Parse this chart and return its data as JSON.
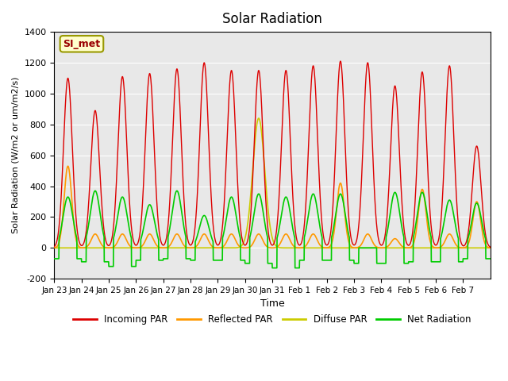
{
  "title": "Solar Radiation",
  "ylabel": "Solar Radiation (W/m2 or um/m2/s)",
  "xlabel": "Time",
  "ylim": [
    -200,
    1400
  ],
  "yticks": [
    -200,
    0,
    200,
    400,
    600,
    800,
    1000,
    1200,
    1400
  ],
  "x_labels": [
    "Jan 23",
    "Jan 24",
    "Jan 25",
    "Jan 26",
    "Jan 27",
    "Jan 28",
    "Jan 29",
    "Jan 30",
    "Jan 31",
    "Feb 1",
    "Feb 2",
    "Feb 3",
    "Feb 4",
    "Feb 5",
    "Feb 6",
    "Feb 7"
  ],
  "annotation": "SI_met",
  "annotation_color": "#990000",
  "annotation_bg": "#ffffcc",
  "annotation_border": "#999900",
  "colors": {
    "incoming": "#dd0000",
    "reflected": "#ff9900",
    "diffuse": "#cccc00",
    "net": "#00cc00"
  },
  "legend_labels": [
    "Incoming PAR",
    "Reflected PAR",
    "Diffuse PAR",
    "Net Radiation"
  ],
  "bg_color": "#e8e8e8",
  "n_days": 16,
  "peaks_incoming": [
    1100,
    890,
    1110,
    1130,
    1160,
    1200,
    1150,
    1150,
    1150,
    1180,
    1210,
    1200,
    1050,
    1140,
    1180,
    660
  ],
  "peaks_reflected": [
    530,
    90,
    90,
    90,
    90,
    90,
    90,
    90,
    90,
    90,
    420,
    90,
    60,
    380,
    90,
    300
  ],
  "peaks_diffuse": [
    0,
    0,
    0,
    0,
    0,
    0,
    0,
    840,
    0,
    0,
    0,
    0,
    0,
    0,
    0,
    0
  ],
  "peaks_net": [
    330,
    370,
    330,
    280,
    370,
    210,
    330,
    350,
    330,
    350,
    350,
    0,
    360,
    360,
    310,
    290
  ],
  "night_net": [
    -70,
    -90,
    -120,
    -80,
    -70,
    -80,
    -80,
    -100,
    -130,
    -80,
    -80,
    -100,
    -100,
    -90,
    -90,
    -70
  ]
}
